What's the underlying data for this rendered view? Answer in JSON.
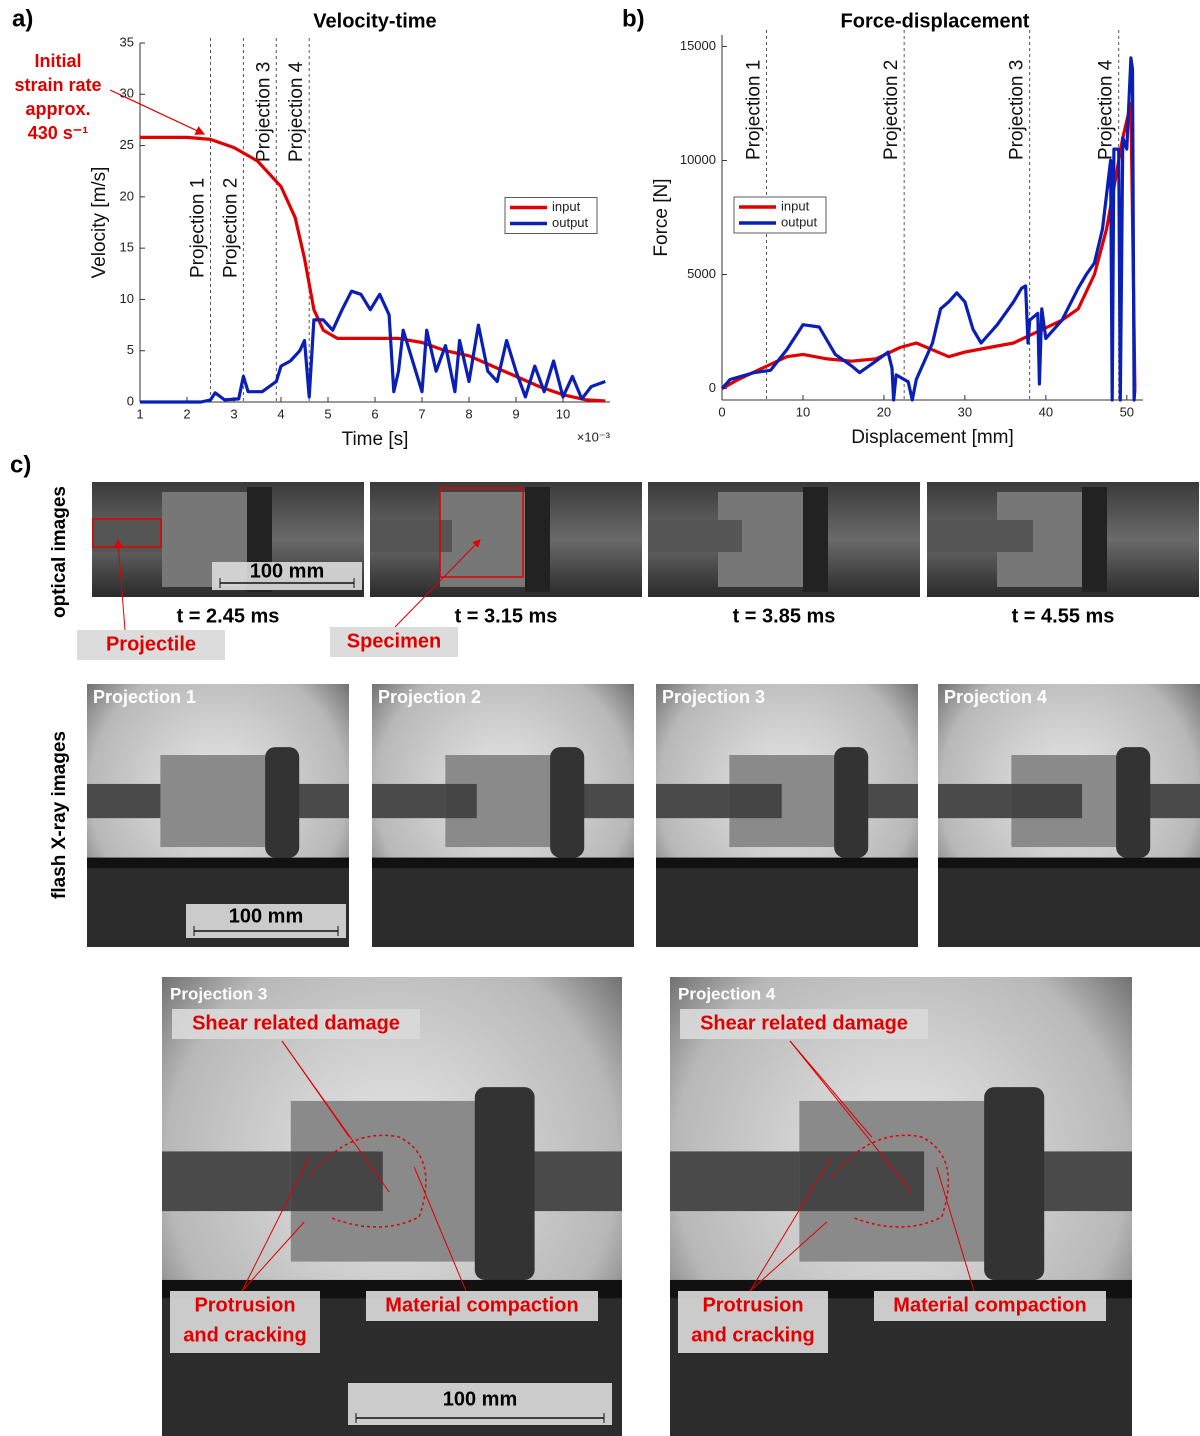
{
  "chart_data": [
    {
      "type": "line",
      "panel": "a)",
      "title": "Velocity-time",
      "x_label": "Time [s]",
      "y_label": "Velocity [m/s]",
      "x_multiplier": "×10⁻³",
      "xlim": [
        1,
        11
      ],
      "xticks": [
        1,
        2,
        3,
        4,
        5,
        6,
        7,
        8,
        9,
        10
      ],
      "ylim": [
        0,
        35
      ],
      "yticks": [
        0,
        5,
        10,
        15,
        20,
        25,
        30,
        35
      ],
      "legend": "right",
      "annotation": [
        "Initial",
        "strain rate",
        "approx.",
        "430 s⁻¹"
      ],
      "vlines": [
        {
          "x": 2.5,
          "label": "Projection 1"
        },
        {
          "x": 3.2,
          "label": "Projection 2"
        },
        {
          "x": 3.9,
          "label": "Projection 3"
        },
        {
          "x": 4.6,
          "label": "Projection 4"
        }
      ],
      "series": [
        {
          "name": "input",
          "color": "#e00000",
          "x": [
            1,
            2,
            2.5,
            3,
            3.5,
            4,
            4.3,
            4.5,
            4.7,
            4.9,
            5.2,
            6,
            6.5,
            7,
            7.5,
            8,
            8.5,
            9,
            9.5,
            10,
            10.5,
            10.9
          ],
          "values": [
            25.8,
            25.8,
            25.6,
            24.8,
            23.5,
            21,
            18,
            14,
            9,
            7,
            6.2,
            6.2,
            6.2,
            5.8,
            5,
            4.5,
            3.5,
            2.5,
            1.5,
            0.7,
            0.2,
            0.1
          ]
        },
        {
          "name": "output",
          "color": "#0a1fb5",
          "x": [
            1,
            2.3,
            2.5,
            2.6,
            2.8,
            3.1,
            3.2,
            3.3,
            3.6,
            3.9,
            4.0,
            4.2,
            4.4,
            4.5,
            4.6,
            4.7,
            4.9,
            5.1,
            5.3,
            5.5,
            5.7,
            5.9,
            6.1,
            6.3,
            6.4,
            6.5,
            6.6,
            6.8,
            7.0,
            7.1,
            7.3,
            7.5,
            7.7,
            7.8,
            8.0,
            8.2,
            8.4,
            8.6,
            8.8,
            9.0,
            9.2,
            9.4,
            9.6,
            9.8,
            10.0,
            10.2,
            10.4,
            10.6,
            10.9
          ],
          "values": [
            0,
            0,
            0.2,
            0.9,
            0.2,
            0.3,
            2.5,
            1,
            1,
            2,
            3.5,
            4,
            5,
            6,
            0.5,
            8,
            8,
            7,
            9,
            10.8,
            10.5,
            9,
            10.5,
            8.5,
            1,
            3,
            7,
            4,
            1,
            7,
            3,
            5.5,
            1,
            6,
            2,
            7.5,
            3,
            2,
            6,
            3,
            0.5,
            3.5,
            1,
            4,
            0.5,
            2.5,
            0.3,
            1.5,
            2
          ]
        }
      ]
    },
    {
      "type": "line",
      "panel": "b)",
      "title": "Force-displacement",
      "x_label": "Displacement [mm]",
      "y_label": "Force [N]",
      "xlim": [
        0,
        52
      ],
      "xticks": [
        0,
        10,
        20,
        30,
        40,
        50
      ],
      "ylim": [
        -500,
        15500
      ],
      "yticks": [
        0,
        5000,
        10000,
        15000
      ],
      "legend": "upper left",
      "vlines": [
        {
          "x": 5.5,
          "label": "Projection 1"
        },
        {
          "x": 22.5,
          "label": "Projection 2"
        },
        {
          "x": 38,
          "label": "Projection 3"
        },
        {
          "x": 49,
          "label": "Projection 4"
        }
      ],
      "series": [
        {
          "name": "input",
          "color": "#e00000",
          "x": [
            0,
            2,
            5,
            8,
            10,
            13,
            16,
            19,
            22,
            24,
            26,
            28,
            30,
            33,
            36,
            39,
            42,
            44,
            46,
            47.5,
            48.5,
            49.5,
            50.5,
            51
          ],
          "values": [
            0,
            400,
            900,
            1400,
            1500,
            1300,
            1200,
            1300,
            1800,
            2000,
            1700,
            1400,
            1600,
            1800,
            2000,
            2500,
            3000,
            3500,
            5000,
            7000,
            9000,
            11000,
            12500,
            0
          ]
        },
        {
          "name": "output",
          "color": "#0a1fb5",
          "x": [
            0,
            1,
            4,
            6,
            8,
            10,
            12,
            14,
            16,
            17,
            19,
            20.5,
            21,
            21.2,
            21.5,
            23,
            23.5,
            24,
            26,
            27,
            28,
            29,
            30,
            31,
            32,
            34,
            36,
            37,
            37.5,
            37.8,
            38,
            39,
            39.2,
            39.5,
            40,
            42,
            44,
            45,
            46,
            47,
            48,
            48.2,
            48.4,
            49,
            49.2,
            49.5,
            50,
            50.5,
            50.7,
            50.9,
            51
          ],
          "values": [
            0,
            400,
            700,
            800,
            1700,
            2800,
            2700,
            1500,
            1000,
            700,
            1200,
            1600,
            900,
            -500,
            600,
            300,
            -500,
            400,
            2000,
            3500,
            3800,
            4200,
            3800,
            2600,
            2000,
            2800,
            3800,
            4400,
            4500,
            2000,
            3000,
            3300,
            200,
            3500,
            2200,
            3000,
            4400,
            5000,
            5500,
            7000,
            10000,
            -500,
            10500,
            10500,
            -500,
            11000,
            10500,
            14500,
            14000,
            -500,
            0
          ]
        }
      ]
    }
  ],
  "panel_c": {
    "label": "c)",
    "optical": {
      "row_label": "optical images",
      "times": [
        "t = 2.45 ms",
        "t = 3.15 ms",
        "t = 3.85 ms",
        "t = 4.55 ms"
      ],
      "projectile": "Projectile",
      "specimen": "Specimen",
      "scale": "100 mm"
    },
    "xray": {
      "row_label": "flash X-ray images",
      "titles": [
        "Projection 1",
        "Projection 2",
        "Projection 3",
        "Projection 4"
      ],
      "scale": "100 mm"
    },
    "details": [
      {
        "title": "Projection 3",
        "shear": "Shear related damage",
        "protrusion": [
          "Protrusion",
          "and cracking"
        ],
        "compaction": "Material compaction",
        "scale": "100 mm"
      },
      {
        "title": "Projection 4",
        "shear": "Shear related damage",
        "protrusion": [
          "Protrusion",
          "and cracking"
        ],
        "compaction": "Material compaction"
      }
    ]
  }
}
